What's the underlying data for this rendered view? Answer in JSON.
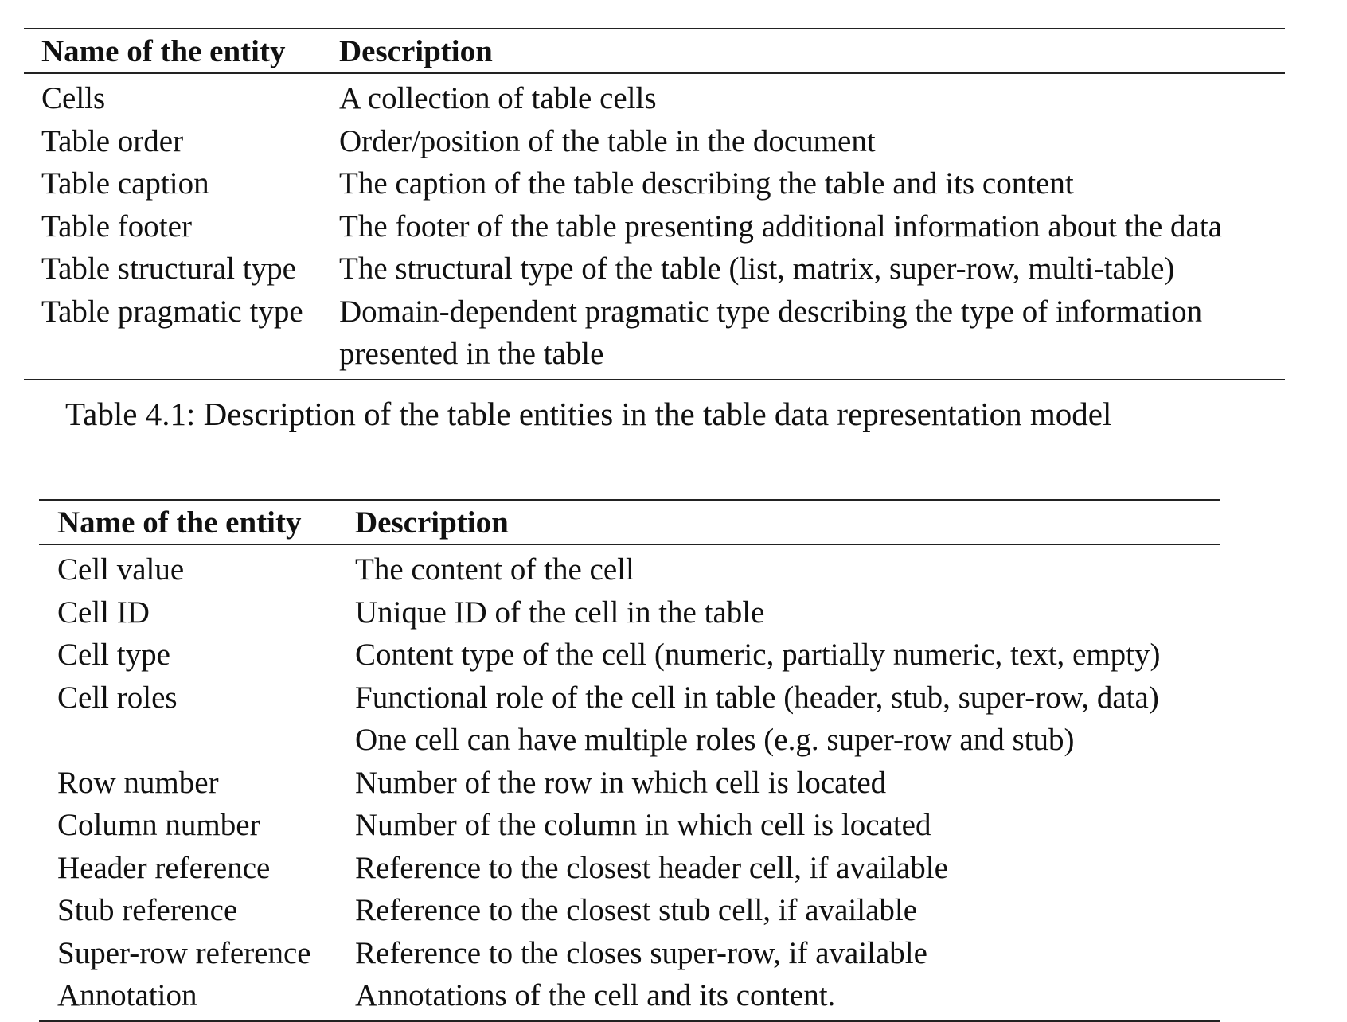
{
  "table1": {
    "headers": {
      "name": "Name of the entity",
      "description": "Description"
    },
    "rows": [
      {
        "name": "Cells",
        "description": "A collection of table cells"
      },
      {
        "name": "Table order",
        "description": "Order/position of the table in the document"
      },
      {
        "name": "Table caption",
        "description": "The caption of the table describing the table and its content"
      },
      {
        "name": "Table footer",
        "description": "The footer of the table presenting additional information about the data"
      },
      {
        "name": "Table structural type",
        "description": "The structural type of the table (list, matrix, super-row, multi-table)"
      },
      {
        "name": "Table pragmatic type",
        "description": "Domain-dependent pragmatic type describing the type of information presented in the table"
      }
    ],
    "caption": "Table 4.1: Description of the table entities in the table data representation model"
  },
  "table2": {
    "headers": {
      "name": "Name of the entity",
      "description": "Description"
    },
    "rows": [
      {
        "name": "Cell value",
        "description": "The content of the cell"
      },
      {
        "name": "Cell ID",
        "description": "Unique ID of the cell in the table"
      },
      {
        "name": "Cell type",
        "description": "Content type of the cell (numeric, partially numeric, text, empty)"
      },
      {
        "name": "Cell roles",
        "description": "Functional role of the cell in table (header, stub, super-row, data)"
      },
      {
        "name": "",
        "description": "One cell can have multiple roles (e.g. super-row and stub)"
      },
      {
        "name": "Row number",
        "description": "Number of the row in which cell is located"
      },
      {
        "name": "Column number",
        "description": "Number of the column in which cell is located"
      },
      {
        "name": "Header reference",
        "description": "Reference to the closest header cell, if available"
      },
      {
        "name": "Stub reference",
        "description": "Reference to the closest stub cell, if available"
      },
      {
        "name": "Super-row reference",
        "description": "Reference to the closes super-row, if available"
      },
      {
        "name": "Annotation",
        "description": "Annotations of the cell and its content."
      }
    ]
  }
}
